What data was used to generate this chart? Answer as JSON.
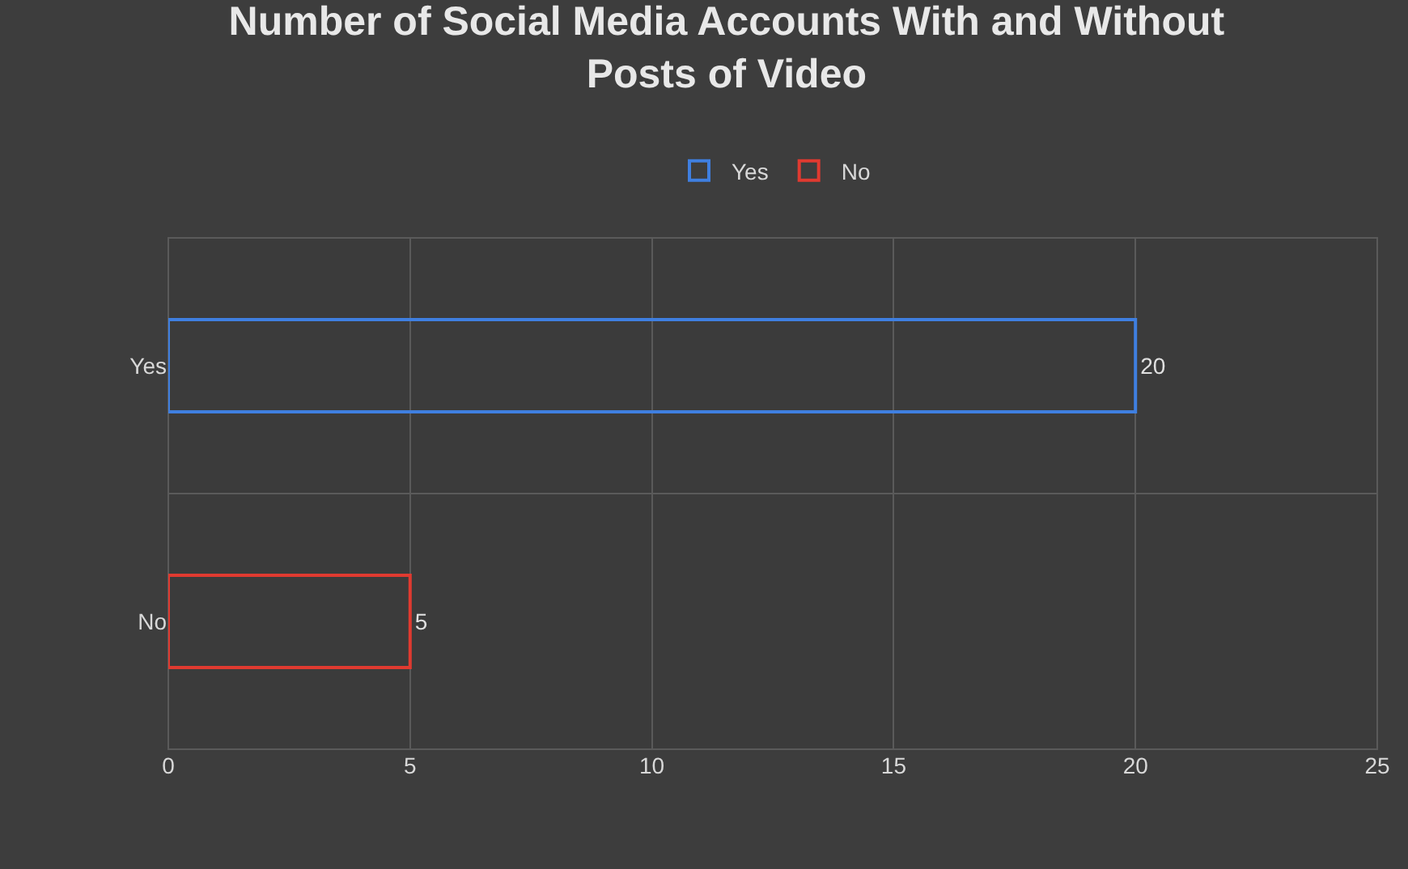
{
  "chart_data": {
    "type": "bar",
    "orientation": "horizontal",
    "title": "Number of Social Media Accounts With and Without\nPosts of Video",
    "categories": [
      "Yes",
      "No"
    ],
    "series": [
      {
        "name": "Yes",
        "color": "#3f7fe0",
        "values": [
          20,
          null
        ]
      },
      {
        "name": "No",
        "color": "#e03a30",
        "values": [
          null,
          5
        ]
      }
    ],
    "xlim": [
      0,
      25
    ],
    "xticks": [
      0,
      5,
      10,
      15,
      20,
      25
    ],
    "grid": true,
    "legend": "top",
    "data_labels": true
  }
}
